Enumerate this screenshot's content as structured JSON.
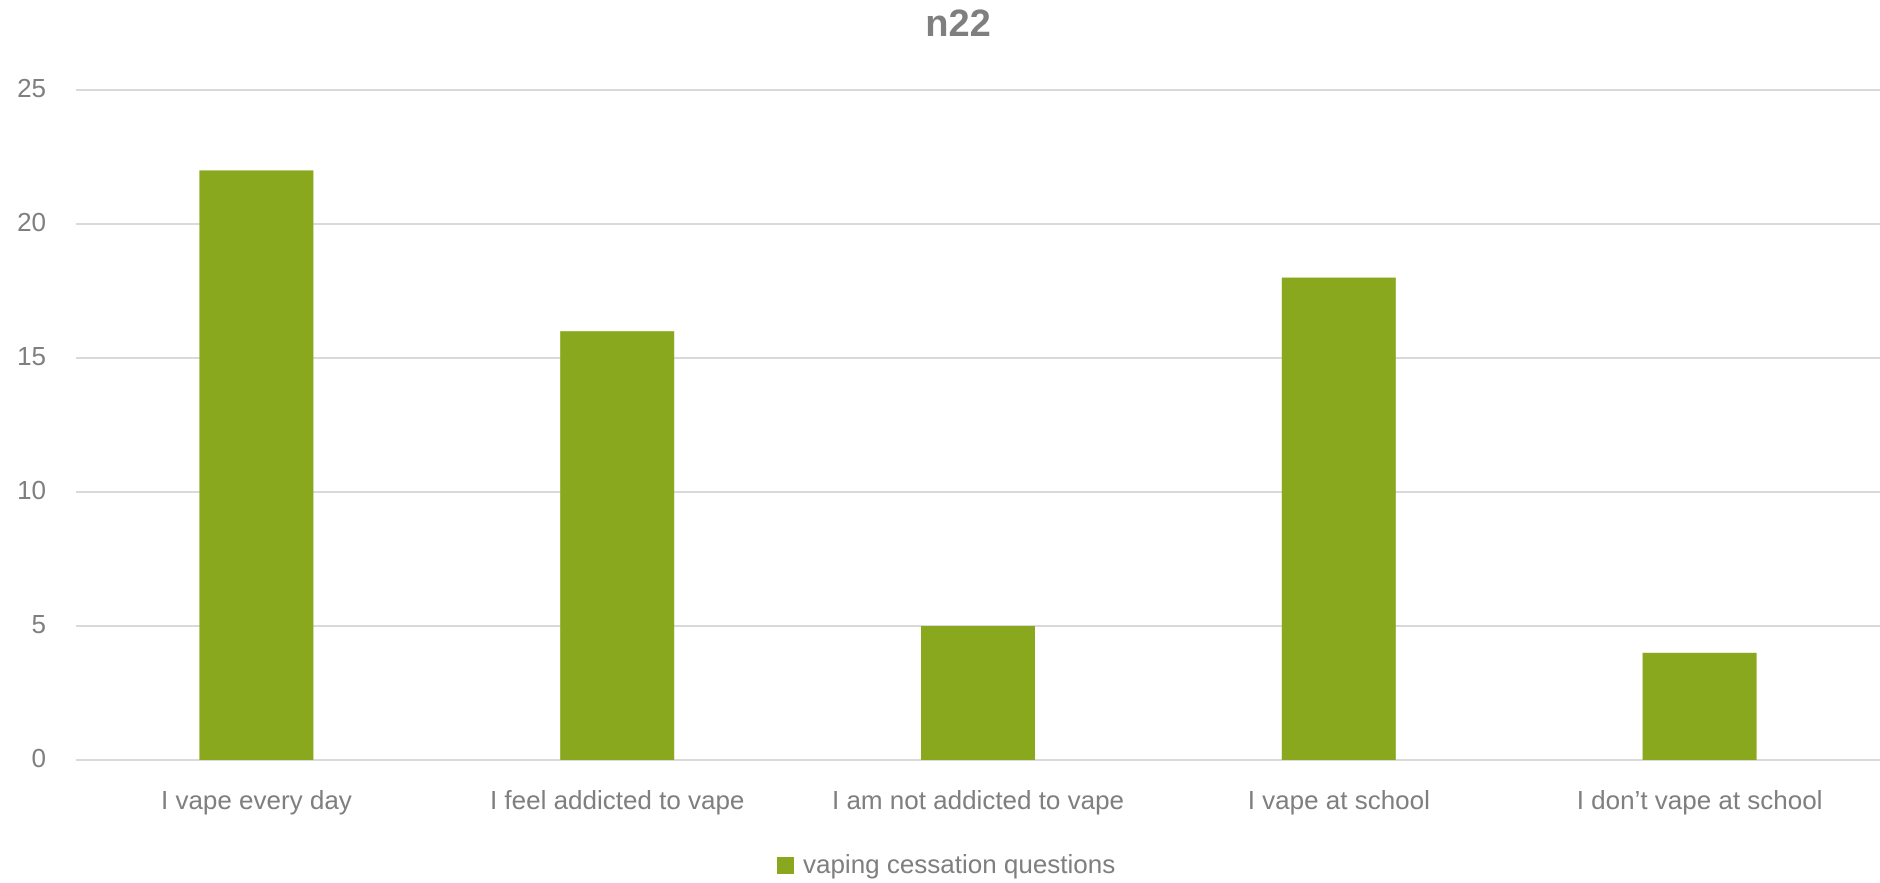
{
  "chart_data": {
    "type": "bar",
    "title": "n22",
    "categories": [
      "I vape every day",
      "I feel addicted to vape",
      "I am not addicted to vape",
      "I vape at school",
      "I don’t vape at school"
    ],
    "series": [
      {
        "name": "vaping cessation questions",
        "color": "#8aa81e",
        "values": [
          22,
          16,
          5,
          18,
          4
        ]
      }
    ],
    "ylim": [
      0,
      25
    ],
    "yticks": [
      0,
      5,
      10,
      15,
      20,
      25
    ],
    "grid": true,
    "legend": "bottom"
  }
}
